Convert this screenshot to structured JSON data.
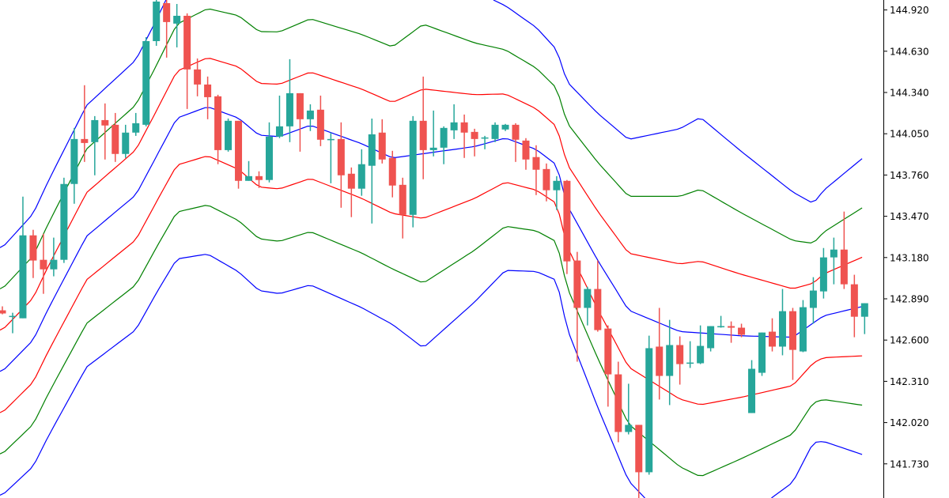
{
  "chart_data": {
    "type": "candlestick",
    "title": "",
    "xlabel": "",
    "ylabel": "",
    "ylim": [
      141.49,
      144.99
    ],
    "grid": false,
    "y_ticks": [
      "144.920",
      "144.630",
      "144.340",
      "144.050",
      "143.760",
      "143.470",
      "143.180",
      "142.890",
      "142.600",
      "142.310",
      "142.020",
      "141.730"
    ],
    "colors": {
      "bull": "#26a69a",
      "bear": "#ef5350",
      "band_outer": "#0000ff",
      "band_2": "#008000",
      "band_1": "#ff0000",
      "band_middle": "#0000ff",
      "axis": "#000000",
      "background": "#ffffff"
    },
    "candles_ohlc": [
      [
        142.809,
        142.837,
        142.781,
        142.787
      ],
      [
        142.764,
        142.792,
        142.648,
        142.77
      ],
      [
        142.753,
        143.608,
        142.753,
        143.336
      ],
      [
        143.336,
        143.375,
        143.036,
        143.159
      ],
      [
        143.164,
        143.347,
        142.925,
        143.097
      ],
      [
        143.097,
        143.32,
        143.048,
        143.164
      ],
      [
        143.164,
        143.741,
        143.142,
        143.697
      ],
      [
        143.697,
        144.091,
        143.558,
        144.013
      ],
      [
        144.013,
        144.391,
        143.852,
        143.985
      ],
      [
        143.991,
        144.174,
        143.758,
        144.146
      ],
      [
        144.146,
        144.263,
        143.869,
        144.108
      ],
      [
        144.113,
        144.196,
        143.852,
        143.908
      ],
      [
        143.908,
        144.113,
        143.88,
        144.058
      ],
      [
        144.058,
        144.196,
        144.035,
        144.124
      ],
      [
        144.113,
        144.729,
        144.102,
        144.701
      ],
      [
        144.701,
        144.99,
        144.668,
        144.979
      ],
      [
        144.968,
        144.99,
        144.585,
        144.835
      ],
      [
        144.824,
        144.962,
        144.657,
        144.879
      ],
      [
        144.879,
        144.896,
        144.224,
        144.502
      ],
      [
        144.502,
        144.579,
        144.313,
        144.396
      ],
      [
        144.396,
        144.452,
        144.152,
        144.307
      ],
      [
        144.313,
        144.324,
        143.836,
        143.935
      ],
      [
        143.935,
        144.157,
        143.924,
        144.141
      ],
      [
        144.141,
        144.141,
        143.664,
        143.719
      ],
      [
        143.719,
        143.858,
        143.719,
        143.752
      ],
      [
        143.752,
        143.786,
        143.669,
        143.725
      ],
      [
        143.725,
        144.13,
        143.708,
        144.03
      ],
      [
        144.03,
        144.318,
        144.019,
        144.102
      ],
      [
        144.102,
        144.574,
        143.991,
        144.335
      ],
      [
        144.335,
        144.335,
        143.924,
        144.152
      ],
      [
        144.152,
        144.257,
        144.069,
        144.213
      ],
      [
        144.219,
        144.318,
        143.963,
        144.008
      ],
      [
        144.008,
        144.058,
        143.702,
        144.013
      ],
      [
        144.013,
        144.13,
        143.53,
        143.758
      ],
      [
        143.769,
        143.813,
        143.464,
        143.664
      ],
      [
        143.664,
        143.941,
        143.614,
        143.836
      ],
      [
        143.825,
        144.157,
        143.419,
        144.046
      ],
      [
        144.058,
        144.152,
        143.841,
        143.869
      ],
      [
        143.88,
        143.93,
        143.603,
        143.686
      ],
      [
        143.691,
        143.741,
        143.314,
        143.48
      ],
      [
        143.48,
        144.174,
        143.392,
        144.141
      ],
      [
        144.141,
        144.452,
        143.73,
        143.935
      ],
      [
        143.935,
        144.213,
        143.891,
        143.952
      ],
      [
        143.952,
        144.102,
        143.836,
        144.091
      ],
      [
        144.074,
        144.257,
        144.013,
        144.13
      ],
      [
        144.13,
        144.185,
        143.88,
        144.058
      ],
      [
        144.063,
        144.085,
        143.891,
        144.013
      ],
      [
        144.019,
        144.035,
        143.941,
        144.024
      ],
      [
        144.013,
        144.13,
        143.991,
        144.113
      ],
      [
        144.08,
        144.119,
        144.069,
        144.113
      ],
      [
        144.113,
        144.124,
        143.852,
        144.008
      ],
      [
        144.002,
        144.019,
        143.797,
        143.869
      ],
      [
        143.886,
        143.969,
        143.619,
        143.797
      ],
      [
        143.802,
        143.841,
        143.575,
        143.653
      ],
      [
        143.653,
        143.752,
        143.514,
        143.719
      ],
      [
        143.719,
        143.725,
        143.064,
        143.153
      ],
      [
        143.159,
        143.22,
        142.448,
        142.826
      ],
      [
        142.826,
        142.975,
        142.703,
        142.959
      ],
      [
        142.959,
        143.159,
        142.659,
        142.67
      ],
      [
        142.681,
        142.703,
        142.132,
        142.359
      ],
      [
        142.359,
        142.448,
        141.882,
        141.954
      ],
      [
        141.954,
        142.293,
        141.937,
        142.004
      ],
      [
        142.004,
        142.004,
        141.49,
        141.671
      ],
      [
        141.671,
        142.631,
        141.654,
        142.543
      ],
      [
        142.554,
        142.826,
        142.182,
        142.348
      ],
      [
        142.348,
        142.742,
        142.143,
        142.565
      ],
      [
        142.565,
        142.626,
        142.287,
        142.431
      ],
      [
        142.437,
        142.592,
        142.404,
        142.442
      ],
      [
        142.437,
        142.703,
        142.431,
        142.559
      ],
      [
        142.543,
        142.698,
        142.52,
        142.698
      ],
      [
        142.692,
        142.77,
        142.687,
        142.698
      ],
      [
        142.698,
        142.731,
        142.581,
        142.687
      ],
      [
        142.687,
        142.715,
        142.62,
        142.637
      ],
      [
        142.087,
        142.459,
        142.087,
        142.398
      ],
      [
        142.37,
        142.653,
        142.348,
        142.653
      ],
      [
        142.659,
        142.753,
        142.52,
        142.554
      ],
      [
        142.554,
        142.959,
        142.493,
        142.803
      ],
      [
        142.803,
        142.826,
        142.32,
        142.531
      ],
      [
        142.52,
        142.881,
        142.515,
        142.831
      ],
      [
        142.826,
        143.042,
        142.715,
        142.948
      ],
      [
        142.942,
        143.247,
        142.892,
        143.181
      ],
      [
        143.181,
        143.32,
        142.992,
        143.236
      ],
      [
        143.236,
        143.503,
        142.959,
        142.992
      ],
      [
        142.992,
        143.059,
        142.62,
        142.764
      ],
      [
        142.764,
        142.859,
        142.642,
        142.859
      ]
    ],
    "band_middle": [
      [
        0,
        142.38
      ],
      [
        3,
        142.6
      ],
      [
        4.4,
        142.81
      ],
      [
        8.2,
        143.33
      ],
      [
        13,
        143.62
      ],
      [
        17,
        144.16
      ],
      [
        20,
        144.24
      ],
      [
        23,
        144.16
      ],
      [
        25,
        144.04
      ],
      [
        27,
        144.03
      ],
      [
        30,
        144.11
      ],
      [
        35,
        143.98
      ],
      [
        38,
        143.88
      ],
      [
        41,
        143.91
      ],
      [
        46,
        143.96
      ],
      [
        49,
        144.02
      ],
      [
        52,
        143.94
      ],
      [
        54,
        143.83
      ],
      [
        55,
        143.55
      ],
      [
        58,
        143.16
      ],
      [
        61,
        142.81
      ],
      [
        66,
        142.66
      ],
      [
        72,
        142.63
      ],
      [
        77,
        142.62
      ],
      [
        80,
        142.77
      ],
      [
        84,
        142.84
      ]
    ],
    "band_sigma": [
      [
        0,
        0.29
      ],
      [
        15,
        0.32
      ],
      [
        23,
        0.36
      ],
      [
        38,
        0.39
      ],
      [
        41,
        0.455
      ],
      [
        49,
        0.31
      ],
      [
        54,
        0.27
      ],
      [
        61,
        0.4
      ],
      [
        68,
        0.505
      ],
      [
        77,
        0.34
      ],
      [
        79,
        0.28
      ],
      [
        84,
        0.35
      ]
    ],
    "band_multipliers": [
      3,
      2,
      1,
      0,
      -1,
      -2,
      -3
    ]
  }
}
